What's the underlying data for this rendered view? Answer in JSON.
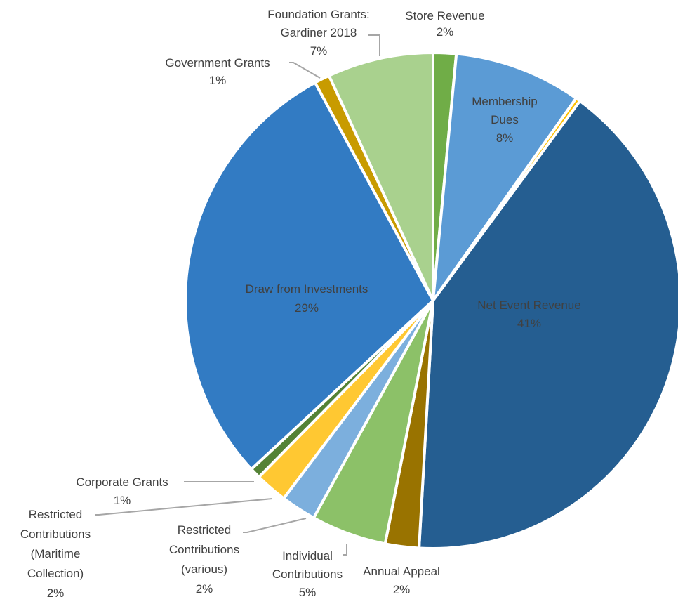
{
  "chart_data": {
    "type": "pie",
    "title": "",
    "legend": "none",
    "slices": [
      {
        "label_lines": [
          "Store Revenue",
          "2%"
        ],
        "value": 1.5,
        "color": "#70AD47"
      },
      {
        "label_lines": [
          "Membership",
          "Dues",
          "8%"
        ],
        "value": 8.3,
        "color": "#5B9BD5"
      },
      {
        "label_lines": [],
        "value": 0.3,
        "color": "#FFC000"
      },
      {
        "label_lines": [
          "Net Event Revenue",
          "41%"
        ],
        "value": 40.8,
        "color": "#255E91"
      },
      {
        "label_lines": [
          "Annual Appeal",
          "2%"
        ],
        "value": 2.2,
        "color": "#997300"
      },
      {
        "label_lines": [
          "Individual",
          "Contributions",
          "5%"
        ],
        "value": 4.9,
        "color": "#8CC168"
      },
      {
        "label_lines": [
          "Restricted",
          "Contributions",
          "(various)",
          "2%"
        ],
        "value": 2.3,
        "color": "#7CAFDD"
      },
      {
        "label_lines": [
          "Restricted",
          "Contributions",
          "(Maritime",
          "Collection)",
          "2%"
        ],
        "value": 2.1,
        "color": "#FFC832"
      },
      {
        "label_lines": [
          "Corporate Grants",
          "1%"
        ],
        "value": 0.7,
        "color": "#548235"
      },
      {
        "label_lines": [
          "Draw from Investments",
          "29%"
        ],
        "value": 29.0,
        "color": "#327BC3"
      },
      {
        "label_lines": [
          "Government Grants",
          "1%"
        ],
        "value": 1.0,
        "color": "#C89B00"
      },
      {
        "label_lines": [
          "Foundation Grants:",
          "Gardiner 2018",
          "7%"
        ],
        "value": 6.9,
        "color": "#A9D18E"
      }
    ]
  }
}
